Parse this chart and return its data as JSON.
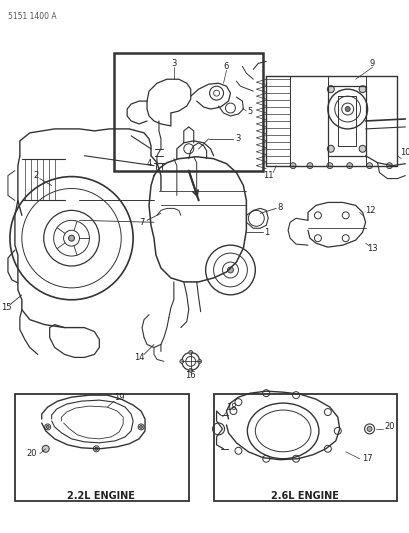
{
  "part_number": "5151 1400 A",
  "background_color": "#ffffff",
  "line_color": "#333333",
  "text_color": "#222222",
  "fig_width": 4.1,
  "fig_height": 5.33,
  "dpi": 100,
  "labels": {
    "part_num": "5151 1400 A",
    "engine_22": "2.2L ENGINE",
    "engine_26": "2.6L ENGINE"
  }
}
